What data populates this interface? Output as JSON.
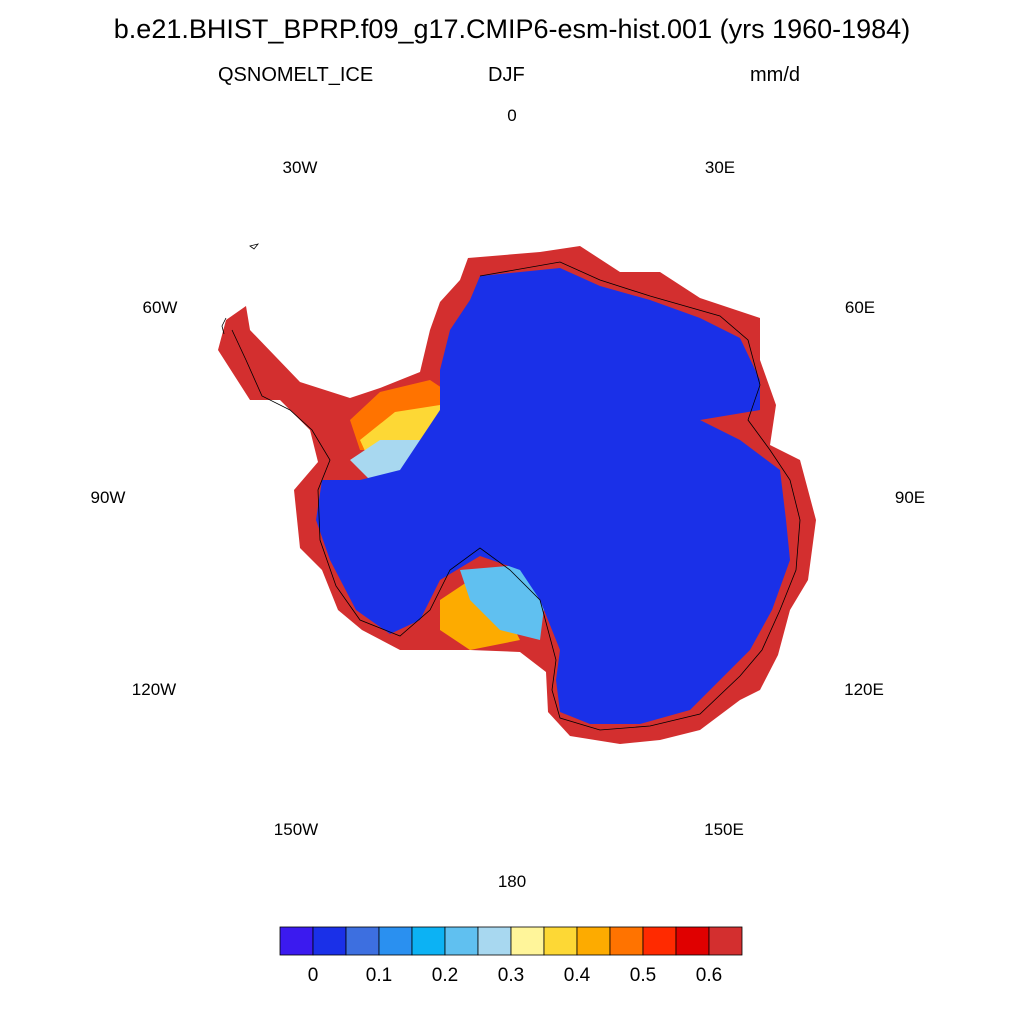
{
  "title": "b.e21.BHIST_BPRP.f09_g17.CMIP6-esm-hist.001 (yrs 1960-1984)",
  "variable": "QSNOMELT_ICE",
  "season": "DJF",
  "units": "mm/d",
  "longitude_labels": {
    "lon_0": "0",
    "lon_30e": "30E",
    "lon_60e": "60E",
    "lon_90e": "90E",
    "lon_120e": "120E",
    "lon_150e": "150E",
    "lon_180": "180",
    "lon_150w": "150W",
    "lon_120w": "120W",
    "lon_90w": "90W",
    "lon_60w": "60W",
    "lon_30w": "30W"
  },
  "colorbar": {
    "colors": [
      "#3b1aef",
      "#1a30e8",
      "#3d6fe0",
      "#2a90f0",
      "#0cb2f4",
      "#60c0f0",
      "#a8d8f0",
      "#fff59a",
      "#fdd835",
      "#fdab00",
      "#ff7300",
      "#ff2a00",
      "#e00000",
      "#d32f2f"
    ],
    "tick_labels": [
      "0",
      "0.1",
      "0.2",
      "0.3",
      "0.4",
      "0.5",
      "0.6"
    ]
  },
  "map": {
    "projection": "south polar stereographic",
    "region": "Antarctica",
    "interior_value_mm_per_day": 0.05,
    "coastal_margin_value_mm_per_day": 0.6
  }
}
